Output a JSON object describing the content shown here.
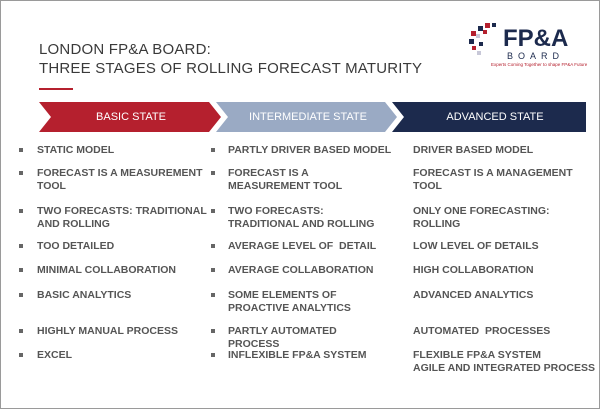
{
  "header": {
    "title_lines": [
      "LONDON FP&A BOARD:",
      "THREE STAGES OF ROLLING FORECAST MATURITY"
    ]
  },
  "logo": {
    "name": "FP&A",
    "sub": "BOARD",
    "tagline": "Experts Coming Together to shape FP&A Future"
  },
  "stages": [
    {
      "label": "BASIC STATE",
      "items": [
        "STATIC MODEL",
        "FORECAST IS A MEASUREMENT TOOL",
        "TWO FORECASTS: TRADITIONAL AND ROLLING",
        "TOO DETAILED",
        "MINIMAL COLLABORATION",
        "BASIC ANALYTICS",
        "HIGHLY MANUAL PROCESS",
        "EXCEL"
      ]
    },
    {
      "label": "INTERMEDIATE STATE",
      "items": [
        "PARTLY DRIVER BASED MODEL",
        "FORECAST IS A MEASUREMENT TOOL",
        "TWO FORECASTS: TRADITIONAL AND ROLLING",
        "AVERAGE LEVEL OF  DETAIL",
        "AVERAGE COLLABORATION",
        "SOME ELEMENTS OF PROACTIVE ANALYTICS",
        "PARTLY AUTOMATED  PROCESS",
        "INFLEXIBLE FP&A SYSTEM"
      ]
    },
    {
      "label": "ADVANCED STATE",
      "items": [
        "DRIVER BASED MODEL",
        "FORECAST IS A MANAGEMENT TOOL",
        "ONLY ONE FORECASTING: ROLLING",
        "LOW LEVEL OF DETAILS",
        "HIGH COLLABORATION",
        "ADVANCED ANALYTICS",
        "AUTOMATED  PROCESSES",
        "FLEXIBLE FP&A SYSTEM",
        "AGILE AND INTEGRATED PROCESS"
      ]
    }
  ]
}
